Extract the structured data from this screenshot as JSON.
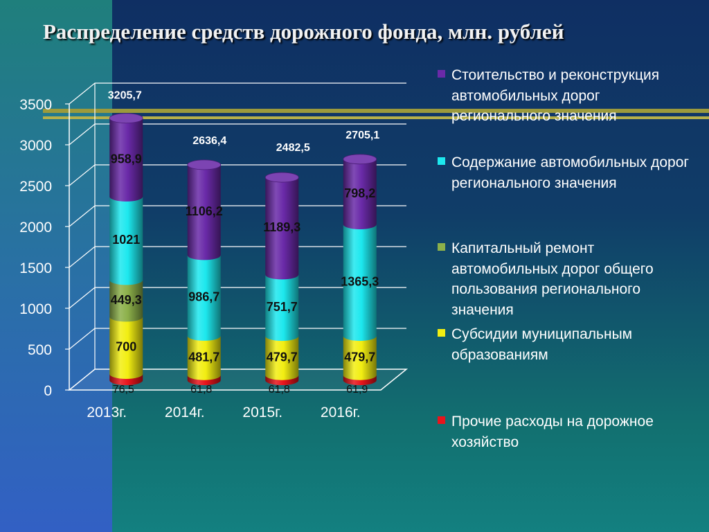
{
  "title": "Распределение средств дорожного фонда, млн. рублей",
  "chart_data": {
    "type": "bar",
    "stacked": true,
    "categories": [
      "2013г.",
      "2014г.",
      "2015г.",
      "2016г."
    ],
    "ylim": [
      0,
      3500
    ],
    "yticks": [
      0,
      500,
      1000,
      1500,
      2000,
      2500,
      3000,
      3500
    ],
    "ytick_labels": [
      "0",
      "500",
      "1000",
      "1500",
      "2000",
      "2500",
      "3000",
      "3500"
    ],
    "totals": [
      3205.7,
      2636.4,
      2482.5,
      2705.1
    ],
    "total_labels": [
      "3205,7",
      "2636,4",
      "2482,5",
      "2705,1"
    ],
    "series": [
      {
        "name": "Прочие расходы на дорожное хозяйство",
        "color": "#e8141c",
        "values": [
          76.5,
          61.8,
          61.8,
          61.9
        ],
        "labels": [
          "76,5",
          "61,8",
          "61,8",
          "61,9"
        ]
      },
      {
        "name": "Субсидии муниципальным образованиям",
        "color": "#f2ee12",
        "values": [
          700,
          481.7,
          479.7,
          479.7
        ],
        "labels": [
          "700",
          "481,7",
          "479,7",
          "479,7"
        ]
      },
      {
        "name": "Капитальный ремонт автомобильных дорог общего пользования регионального значения",
        "color": "#8cb04a",
        "values": [
          449.3,
          0,
          0,
          0
        ],
        "labels": [
          "449,3",
          "",
          "",
          ""
        ]
      },
      {
        "name": "Содержание автомобильных дорог регионального значения",
        "color": "#1de8ee",
        "values": [
          1021,
          986.7,
          751.7,
          1365.3
        ],
        "labels": [
          "1021",
          "986,7",
          "751,7",
          "1365,3"
        ]
      },
      {
        "name": "Стоительство и реконструкция автомобильных дорог регионального значения",
        "color": "#6a2aa8",
        "values": [
          958.9,
          1106.2,
          1189.3,
          798.2
        ],
        "labels": [
          "958,9",
          "1106,2",
          "1189,3",
          "798,2"
        ]
      }
    ],
    "legend": {
      "placement": "right",
      "items": [
        {
          "text": "Стоительство и реконструкция автомобильных дорог регионального значения",
          "color": "#6a2aa8"
        },
        {
          "text": "Содержание автомобильных дорог регионального значения",
          "color": "#1de8ee"
        },
        {
          "text": "Капитальный ремонт автомобильных дорог общего пользования регионального значения",
          "color": "#8cb04a"
        },
        {
          "text": "Субсидии муниципальным образованиям",
          "color": "#f2ee12"
        },
        {
          "text": "Прочие расходы на дорожное хозяйство",
          "color": "#e8141c"
        }
      ]
    }
  }
}
